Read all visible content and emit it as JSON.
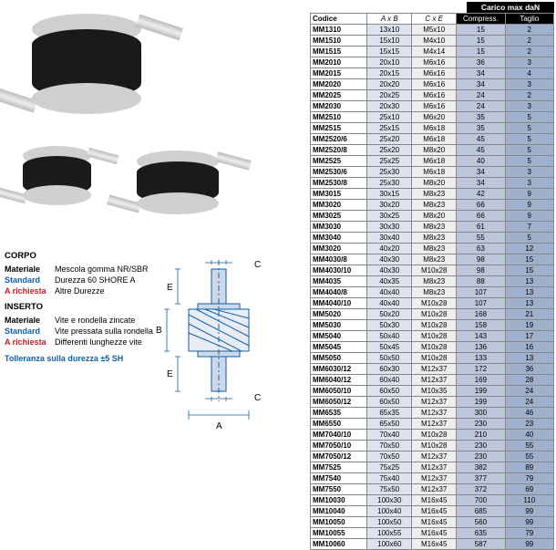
{
  "specs": {
    "corpo_title": "CORPO",
    "corpo_rows": [
      {
        "label": "Materiale",
        "cls": "",
        "val": "Mescola gomma NR/SBR"
      },
      {
        "label": "Standard",
        "cls": "blue",
        "val": "Durezza 60 SHORE A"
      },
      {
        "label": "A richiesta",
        "cls": "red",
        "val": "Altre Durezze"
      }
    ],
    "inserto_title": "INSERTO",
    "inserto_rows": [
      {
        "label": "Materiale",
        "cls": "",
        "val": "Vite e rondella zincate"
      },
      {
        "label": "Standard",
        "cls": "blue",
        "val": "Vite pressata sulla rondella"
      },
      {
        "label": "A richiesta",
        "cls": "red",
        "val": "Differenti lunghezze vite"
      }
    ],
    "tolerance": "Tolleranza sulla durezza ±5 SH"
  },
  "diagram_labels": {
    "A": "A",
    "B": "B",
    "C": "C",
    "E": "E"
  },
  "table": {
    "header_black": "Carico max daN",
    "cols": {
      "codice": "Codice",
      "ab": "A x B",
      "ce": "C x E",
      "cp": "Compress.",
      "tg": "Taglio"
    },
    "rows": [
      [
        "MM1310",
        "13x10",
        "M5x10",
        "15",
        "2"
      ],
      [
        "MM1510",
        "15x10",
        "M4x10",
        "15",
        "2"
      ],
      [
        "MM1515",
        "15x15",
        "M4x14",
        "15",
        "2"
      ],
      [
        "MM2010",
        "20x10",
        "M6x16",
        "36",
        "3"
      ],
      [
        "MM2015",
        "20x15",
        "M6x16",
        "34",
        "4"
      ],
      [
        "MM2020",
        "20x20",
        "M6x16",
        "34",
        "3"
      ],
      [
        "MM2025",
        "20x25",
        "M6x16",
        "24",
        "2"
      ],
      [
        "MM2030",
        "20x30",
        "M6x16",
        "24",
        "3"
      ],
      [
        "MM2510",
        "25x10",
        "M6x20",
        "35",
        "5"
      ],
      [
        "MM2515",
        "25x15",
        "M6x18",
        "35",
        "5"
      ],
      [
        "MM2520/6",
        "25x20",
        "M6x18",
        "45",
        "5"
      ],
      [
        "MM2520/8",
        "25x20",
        "M8x20",
        "45",
        "5"
      ],
      [
        "MM2525",
        "25x25",
        "M6x18",
        "40",
        "5"
      ],
      [
        "MM2530/6",
        "25x30",
        "M6x18",
        "34",
        "3"
      ],
      [
        "MM2530/8",
        "25x30",
        "M8x20",
        "34",
        "3"
      ],
      [
        "MM3015",
        "30x15",
        "M8x23",
        "42",
        "9"
      ],
      [
        "MM3020",
        "30x20",
        "M8x23",
        "66",
        "9"
      ],
      [
        "MM3025",
        "30x25",
        "M8x20",
        "66",
        "9"
      ],
      [
        "MM3030",
        "30x30",
        "M8x23",
        "61",
        "7"
      ],
      [
        "MM3040",
        "30x40",
        "M8x23",
        "55",
        "5"
      ],
      [
        "MM3020",
        "40x20",
        "M8x23",
        "63",
        "12"
      ],
      [
        "MM4030/8",
        "40x30",
        "M8x23",
        "98",
        "15"
      ],
      [
        "MM4030/10",
        "40x30",
        "M10x28",
        "98",
        "15"
      ],
      [
        "MM4035",
        "40x35",
        "M8x23",
        "88",
        "13"
      ],
      [
        "MM4040/8",
        "40x40",
        "M8x23",
        "107",
        "13"
      ],
      [
        "MM4040/10",
        "40x40",
        "M10x28",
        "107",
        "13"
      ],
      [
        "MM5020",
        "50x20",
        "M10x28",
        "168",
        "21"
      ],
      [
        "MM5030",
        "50x30",
        "M10x28",
        "158",
        "19"
      ],
      [
        "MM5040",
        "50x40",
        "M10x28",
        "143",
        "17"
      ],
      [
        "MM5045",
        "50x45",
        "M10x28",
        "136",
        "16"
      ],
      [
        "MM5050",
        "50x50",
        "M10x28",
        "133",
        "13"
      ],
      [
        "MM6030/12",
        "60x30",
        "M12x37",
        "172",
        "36"
      ],
      [
        "MM6040/12",
        "60x40",
        "M12x37",
        "169",
        "28"
      ],
      [
        "MM6050/10",
        "60x50",
        "M10x35",
        "199",
        "24"
      ],
      [
        "MM6050/12",
        "60x50",
        "M12x37",
        "199",
        "24"
      ],
      [
        "MM6535",
        "65x35",
        "M12x37",
        "300",
        "46"
      ],
      [
        "MM6550",
        "65x50",
        "M12x37",
        "230",
        "23"
      ],
      [
        "MM7040/10",
        "70x40",
        "M10x28",
        "210",
        "40"
      ],
      [
        "MM7050/10",
        "70x50",
        "M10x28",
        "230",
        "55"
      ],
      [
        "MM7050/12",
        "70x50",
        "M12x37",
        "230",
        "55"
      ],
      [
        "MM7525",
        "75x25",
        "M12x37",
        "382",
        "89"
      ],
      [
        "MM7540",
        "75x40",
        "M12x37",
        "377",
        "79"
      ],
      [
        "MM7550",
        "75x50",
        "M12x37",
        "372",
        "69"
      ],
      [
        "MM10030",
        "100x30",
        "M16x45",
        "700",
        "110"
      ],
      [
        "MM10040",
        "100x40",
        "M16x45",
        "685",
        "99"
      ],
      [
        "MM10050",
        "100x50",
        "M16x45",
        "560",
        "99"
      ],
      [
        "MM10055",
        "100x55",
        "M16x45",
        "635",
        "79"
      ],
      [
        "MM10060",
        "100x60",
        "M16x45",
        "587",
        "99"
      ]
    ]
  }
}
